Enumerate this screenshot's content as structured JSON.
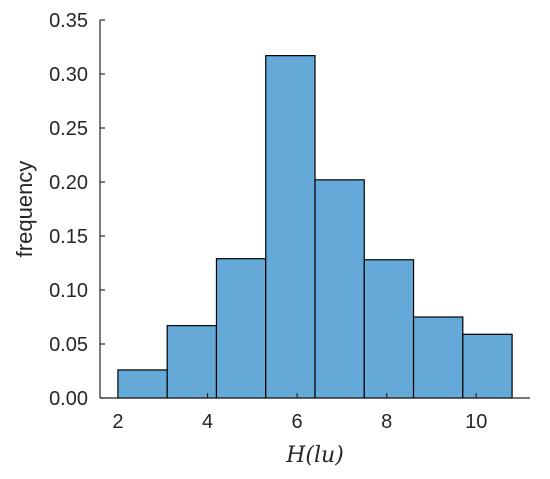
{
  "chart_data": {
    "type": "bar",
    "subtype": "histogram",
    "bin_edges": [
      2.0,
      3.1,
      4.2,
      5.3,
      6.4,
      7.5,
      8.6,
      9.7,
      10.8
    ],
    "values": [
      0.026,
      0.067,
      0.129,
      0.317,
      0.202,
      0.128,
      0.075,
      0.059
    ],
    "xlabel": "H(lu)",
    "ylabel": "frequency",
    "xlim": [
      1.6,
      11.2
    ],
    "ylim": [
      0,
      0.35
    ],
    "xticks": [
      2,
      4,
      6,
      8,
      10
    ],
    "xtick_labels": [
      "2",
      "4",
      "6",
      "8",
      "10"
    ],
    "yticks": [
      0,
      0.05,
      0.1,
      0.15,
      0.2,
      0.25,
      0.3,
      0.35
    ],
    "ytick_labels": [
      "0.00",
      "0.05",
      "0.10",
      "0.15",
      "0.20",
      "0.25",
      "0.30",
      "0.35"
    ],
    "grid": false,
    "box": "left-bottom",
    "bar_color": "#65a9d8",
    "edge_color": "#000000"
  }
}
